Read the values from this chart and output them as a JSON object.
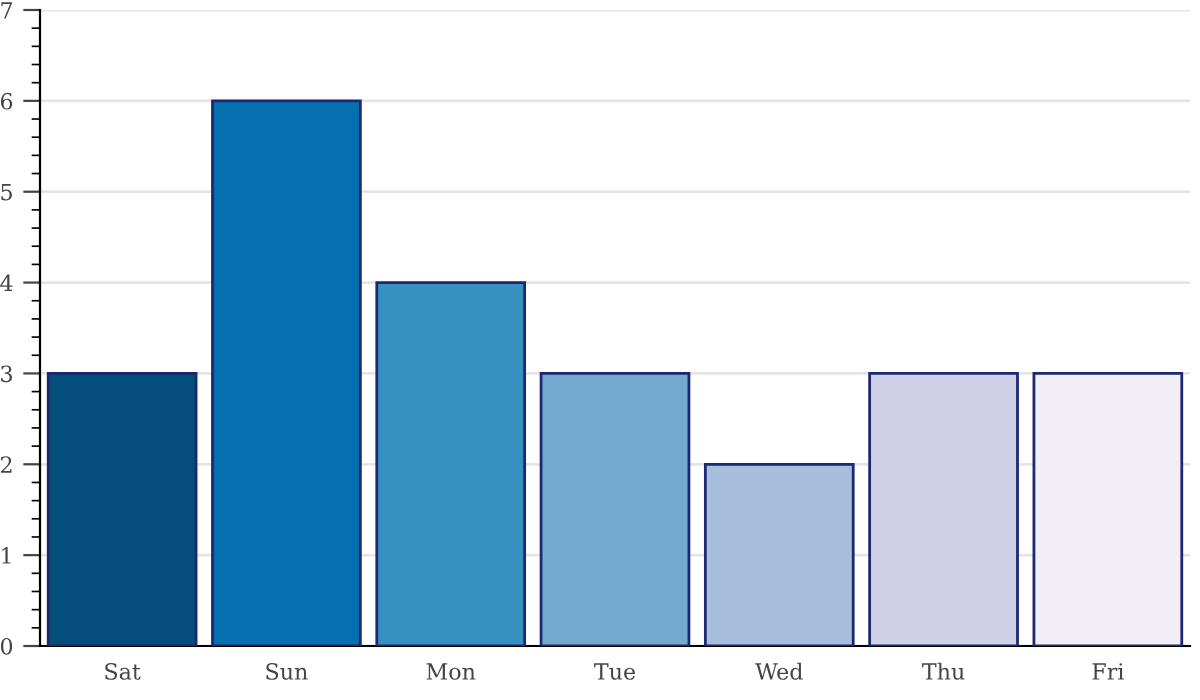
{
  "chart_data": {
    "type": "bar",
    "categories": [
      "Sat",
      "Sun",
      "Mon",
      "Tue",
      "Wed",
      "Thu",
      "Fri"
    ],
    "values": [
      3,
      6,
      4,
      3,
      2,
      3,
      3
    ],
    "colors": [
      "#034e7b",
      "#0570b0",
      "#3690c0",
      "#74a9cf",
      "#a6bddb",
      "#d0d1e6",
      "#f1eef6"
    ],
    "ylim": [
      0,
      7
    ],
    "yticks": [
      0,
      1,
      2,
      3,
      4,
      5,
      6,
      7
    ],
    "grid": "y",
    "legend": false
  }
}
